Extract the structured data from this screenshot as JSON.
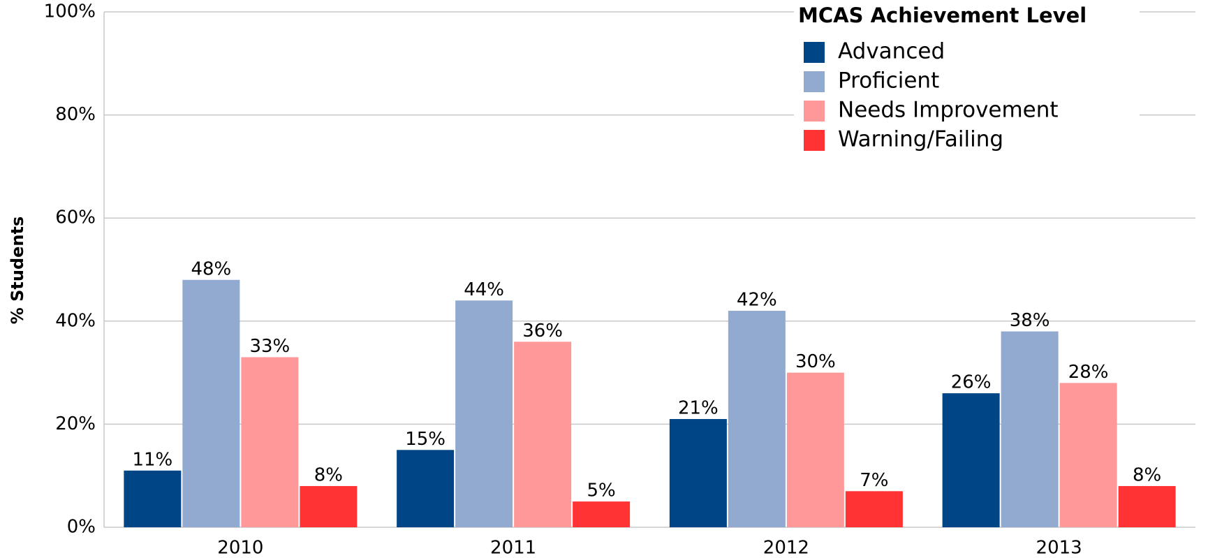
{
  "chart_data": {
    "type": "bar",
    "y_label": "% Students",
    "legend_title": "MCAS Achievement Level",
    "legend_position": "upper right",
    "grid": true,
    "categories": [
      "2010",
      "2011",
      "2012",
      "2013"
    ],
    "series": [
      {
        "name": "Advanced",
        "color": "#004586",
        "values": [
          11,
          15,
          21,
          26
        ],
        "value_labels": [
          "11%",
          "15%",
          "21%",
          "26%"
        ]
      },
      {
        "name": "Proficient",
        "color": "#92a9d0",
        "values": [
          48,
          44,
          42,
          38
        ],
        "value_labels": [
          "48%",
          "44%",
          "42%",
          "38%"
        ]
      },
      {
        "name": "Needs Improvement",
        "color": "#ff9999",
        "values": [
          33,
          36,
          30,
          28
        ],
        "value_labels": [
          "33%",
          "36%",
          "30%",
          "28%"
        ]
      },
      {
        "name": "Warning/Failing",
        "color": "#ff3333",
        "values": [
          8,
          5,
          7,
          8
        ],
        "value_labels": [
          "8%",
          "5%",
          "7%",
          "8%"
        ]
      }
    ],
    "ylim": [
      0,
      100
    ],
    "yticks": [
      {
        "value": 0,
        "label": "0%"
      },
      {
        "value": 20,
        "label": "20%"
      },
      {
        "value": 40,
        "label": "40%"
      },
      {
        "value": 60,
        "label": "60%"
      },
      {
        "value": 80,
        "label": "80%"
      },
      {
        "value": 100,
        "label": "100%"
      }
    ]
  }
}
